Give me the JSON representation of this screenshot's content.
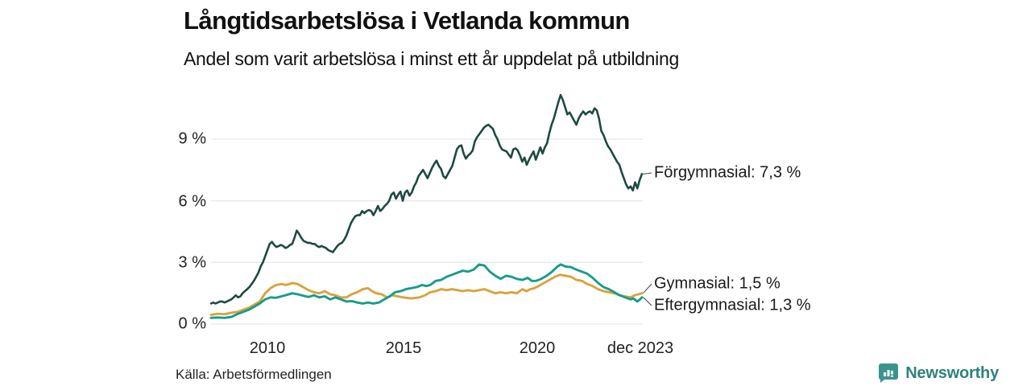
{
  "header": {
    "title": "Långtidsarbetslösa i Vetlanda kommun",
    "subtitle": "Andel som varit arbetslösa i minst ett år uppdelat på utbildning"
  },
  "footer": {
    "source": "Källa: Arbetsförmedlingen",
    "brand_name": "Newsworthy"
  },
  "colors": {
    "forgymnasial": "#1d4a43",
    "gymnasial": "#d8a33e",
    "eftergymnasial": "#179c8b",
    "grid": "#e8e8e8",
    "connector": "#444444",
    "brand_teal": "#3b948c",
    "brand_text": "#2e827c"
  },
  "chart_data": {
    "type": "line",
    "title": "Långtidsarbetslösa i Vetlanda kommun",
    "subtitle": "Andel som varit arbetslösa i minst ett år uppdelat på utbildning",
    "unit": "%",
    "x_range": [
      2008.0,
      2023.95
    ],
    "grid": true,
    "legend_position": "right-annotations",
    "y_axis": {
      "range": [
        0,
        11.5
      ],
      "ticks": [
        {
          "label": "9 %",
          "value": 9
        },
        {
          "label": "6 %",
          "value": 6
        },
        {
          "label": "3 %",
          "value": 3
        },
        {
          "label": "0 %",
          "value": 0
        }
      ]
    },
    "x_axis": {
      "ticks": [
        {
          "label": "2010",
          "year": 2010
        },
        {
          "label": "2015",
          "year": 2015
        },
        {
          "label": "2020",
          "year": 2020
        },
        {
          "label": "dec 2023",
          "year": 2023.92
        }
      ]
    },
    "series": [
      {
        "name": "Förgymnasial",
        "label": "Förgymnasial: 7,3 %",
        "end_value": "7,3 %",
        "color": "#1d4a43",
        "x_start": 2008.0,
        "x_step": 0.08333,
        "values": [
          1.0,
          1.05,
          1.0,
          1.05,
          1.1,
          1.1,
          1.05,
          1.1,
          1.15,
          1.2,
          1.3,
          1.4,
          1.3,
          1.35,
          1.5,
          1.6,
          1.7,
          1.8,
          1.95,
          2.1,
          2.3,
          2.5,
          2.8,
          3.0,
          3.3,
          3.6,
          3.9,
          4.0,
          3.85,
          3.75,
          3.8,
          3.85,
          3.8,
          3.7,
          3.75,
          3.85,
          3.9,
          4.2,
          4.55,
          4.4,
          4.2,
          4.05,
          4.0,
          3.95,
          3.95,
          3.9,
          3.9,
          3.8,
          3.75,
          3.8,
          3.75,
          3.7,
          3.6,
          3.55,
          3.5,
          3.65,
          3.8,
          3.9,
          3.95,
          4.1,
          4.3,
          4.6,
          4.9,
          5.1,
          5.25,
          5.3,
          5.3,
          5.5,
          5.4,
          5.5,
          5.55,
          5.5,
          5.3,
          5.5,
          5.75,
          5.5,
          5.6,
          5.75,
          5.85,
          6.0,
          6.3,
          6.4,
          6.1,
          6.3,
          6.45,
          6.0,
          6.4,
          6.5,
          6.25,
          6.4,
          6.7,
          6.9,
          7.2,
          7.35,
          7.5,
          7.3,
          7.1,
          7.35,
          7.6,
          7.8,
          7.95,
          7.7,
          7.55,
          7.2,
          7.1,
          7.3,
          7.5,
          7.7,
          8.1,
          8.5,
          8.65,
          8.7,
          8.3,
          8.05,
          8.2,
          8.3,
          8.45,
          8.9,
          9.1,
          9.25,
          9.4,
          9.55,
          9.65,
          9.7,
          9.6,
          9.5,
          9.2,
          9.0,
          8.7,
          8.5,
          8.45,
          8.4,
          8.25,
          8.1,
          8.5,
          8.55,
          8.45,
          8.2,
          7.9,
          8.1,
          7.75,
          8.0,
          8.2,
          8.4,
          8.0,
          8.3,
          8.6,
          8.3,
          8.6,
          8.8,
          9.3,
          9.7,
          10.0,
          10.4,
          10.8,
          11.15,
          10.9,
          10.55,
          10.2,
          10.3,
          10.1,
          9.9,
          9.7,
          10.0,
          10.2,
          10.35,
          10.2,
          10.3,
          10.35,
          10.25,
          10.5,
          10.4,
          10.0,
          9.4,
          9.2,
          8.9,
          8.65,
          8.5,
          8.3,
          8.1,
          7.9,
          7.75,
          7.4,
          7.1,
          6.8,
          6.6,
          6.7,
          6.5,
          6.9,
          6.6,
          7.0,
          7.3
        ]
      },
      {
        "name": "Gymnasial",
        "label": "Gymnasial: 1,5 %",
        "end_value": "1,5 %",
        "color": "#d8a33e",
        "points": [
          [
            2008.0,
            0.45
          ],
          [
            2008.25,
            0.5
          ],
          [
            2008.5,
            0.48
          ],
          [
            2008.75,
            0.55
          ],
          [
            2009.0,
            0.6
          ],
          [
            2009.2,
            0.7
          ],
          [
            2009.4,
            0.8
          ],
          [
            2009.6,
            0.95
          ],
          [
            2009.8,
            1.1
          ],
          [
            2010.0,
            1.5
          ],
          [
            2010.2,
            1.75
          ],
          [
            2010.4,
            1.9
          ],
          [
            2010.6,
            1.95
          ],
          [
            2010.75,
            1.9
          ],
          [
            2010.9,
            1.95
          ],
          [
            2011.0,
            2.0
          ],
          [
            2011.2,
            1.95
          ],
          [
            2011.4,
            1.8
          ],
          [
            2011.6,
            1.65
          ],
          [
            2011.8,
            1.55
          ],
          [
            2012.0,
            1.5
          ],
          [
            2012.2,
            1.6
          ],
          [
            2012.4,
            1.45
          ],
          [
            2012.6,
            1.4
          ],
          [
            2012.8,
            1.3
          ],
          [
            2013.0,
            1.3
          ],
          [
            2013.2,
            1.45
          ],
          [
            2013.4,
            1.55
          ],
          [
            2013.6,
            1.7
          ],
          [
            2013.8,
            1.75
          ],
          [
            2013.95,
            1.6
          ],
          [
            2014.1,
            1.5
          ],
          [
            2014.3,
            1.45
          ],
          [
            2014.5,
            1.3
          ],
          [
            2014.7,
            1.4
          ],
          [
            2014.9,
            1.35
          ],
          [
            2015.1,
            1.3
          ],
          [
            2015.4,
            1.25
          ],
          [
            2015.7,
            1.3
          ],
          [
            2015.9,
            1.4
          ],
          [
            2016.1,
            1.55
          ],
          [
            2016.3,
            1.6
          ],
          [
            2016.5,
            1.7
          ],
          [
            2016.7,
            1.65
          ],
          [
            2016.9,
            1.7
          ],
          [
            2017.1,
            1.65
          ],
          [
            2017.3,
            1.6
          ],
          [
            2017.5,
            1.65
          ],
          [
            2017.7,
            1.6
          ],
          [
            2017.9,
            1.65
          ],
          [
            2018.1,
            1.7
          ],
          [
            2018.3,
            1.6
          ],
          [
            2018.5,
            1.5
          ],
          [
            2018.7,
            1.55
          ],
          [
            2018.9,
            1.5
          ],
          [
            2019.1,
            1.55
          ],
          [
            2019.3,
            1.5
          ],
          [
            2019.5,
            1.7
          ],
          [
            2019.65,
            1.6
          ],
          [
            2019.8,
            1.7
          ],
          [
            2019.95,
            1.75
          ],
          [
            2020.1,
            1.85
          ],
          [
            2020.3,
            2.0
          ],
          [
            2020.5,
            2.15
          ],
          [
            2020.7,
            2.3
          ],
          [
            2020.9,
            2.4
          ],
          [
            2021.1,
            2.35
          ],
          [
            2021.3,
            2.3
          ],
          [
            2021.5,
            2.15
          ],
          [
            2021.7,
            2.1
          ],
          [
            2021.9,
            1.95
          ],
          [
            2022.1,
            1.85
          ],
          [
            2022.3,
            1.7
          ],
          [
            2022.5,
            1.6
          ],
          [
            2022.7,
            1.55
          ],
          [
            2022.9,
            1.5
          ],
          [
            2023.1,
            1.4
          ],
          [
            2023.3,
            1.35
          ],
          [
            2023.5,
            1.3
          ],
          [
            2023.65,
            1.4
          ],
          [
            2023.8,
            1.45
          ],
          [
            2023.92,
            1.5
          ]
        ]
      },
      {
        "name": "Eftergymnasial",
        "label": "Eftergymnasial: 1,3 %",
        "end_value": "1,3 %",
        "color": "#179c8b",
        "points": [
          [
            2008.0,
            0.3
          ],
          [
            2008.25,
            0.32
          ],
          [
            2008.5,
            0.3
          ],
          [
            2008.75,
            0.35
          ],
          [
            2009.0,
            0.5
          ],
          [
            2009.2,
            0.6
          ],
          [
            2009.4,
            0.7
          ],
          [
            2009.6,
            0.85
          ],
          [
            2009.8,
            1.0
          ],
          [
            2010.0,
            1.2
          ],
          [
            2010.2,
            1.3
          ],
          [
            2010.4,
            1.28
          ],
          [
            2010.6,
            1.35
          ],
          [
            2010.8,
            1.42
          ],
          [
            2011.0,
            1.5
          ],
          [
            2011.2,
            1.45
          ],
          [
            2011.4,
            1.38
          ],
          [
            2011.6,
            1.32
          ],
          [
            2011.8,
            1.4
          ],
          [
            2012.0,
            1.3
          ],
          [
            2012.2,
            1.35
          ],
          [
            2012.4,
            1.2
          ],
          [
            2012.6,
            1.3
          ],
          [
            2012.8,
            1.2
          ],
          [
            2013.0,
            1.1
          ],
          [
            2013.2,
            1.12
          ],
          [
            2013.4,
            1.05
          ],
          [
            2013.6,
            1.0
          ],
          [
            2013.8,
            1.05
          ],
          [
            2014.0,
            1.0
          ],
          [
            2014.2,
            1.05
          ],
          [
            2014.4,
            1.2
          ],
          [
            2014.6,
            1.35
          ],
          [
            2014.8,
            1.55
          ],
          [
            2015.0,
            1.6
          ],
          [
            2015.2,
            1.7
          ],
          [
            2015.4,
            1.75
          ],
          [
            2015.6,
            1.8
          ],
          [
            2015.8,
            1.9
          ],
          [
            2015.95,
            1.85
          ],
          [
            2016.1,
            1.9
          ],
          [
            2016.3,
            2.1
          ],
          [
            2016.5,
            2.15
          ],
          [
            2016.7,
            2.3
          ],
          [
            2016.9,
            2.4
          ],
          [
            2017.1,
            2.5
          ],
          [
            2017.3,
            2.6
          ],
          [
            2017.5,
            2.55
          ],
          [
            2017.7,
            2.65
          ],
          [
            2017.9,
            2.9
          ],
          [
            2018.1,
            2.85
          ],
          [
            2018.3,
            2.55
          ],
          [
            2018.5,
            2.35
          ],
          [
            2018.7,
            2.2
          ],
          [
            2018.9,
            2.35
          ],
          [
            2019.1,
            2.3
          ],
          [
            2019.3,
            2.2
          ],
          [
            2019.5,
            2.15
          ],
          [
            2019.7,
            2.25
          ],
          [
            2019.85,
            2.1
          ],
          [
            2020.0,
            2.1
          ],
          [
            2020.2,
            2.2
          ],
          [
            2020.4,
            2.35
          ],
          [
            2020.6,
            2.55
          ],
          [
            2020.8,
            2.8
          ],
          [
            2020.92,
            2.9
          ],
          [
            2021.1,
            2.8
          ],
          [
            2021.3,
            2.77
          ],
          [
            2021.5,
            2.65
          ],
          [
            2021.7,
            2.55
          ],
          [
            2021.9,
            2.45
          ],
          [
            2022.1,
            2.25
          ],
          [
            2022.3,
            2.0
          ],
          [
            2022.5,
            1.8
          ],
          [
            2022.7,
            1.7
          ],
          [
            2022.9,
            1.55
          ],
          [
            2023.1,
            1.4
          ],
          [
            2023.3,
            1.3
          ],
          [
            2023.5,
            1.2
          ],
          [
            2023.6,
            1.25
          ],
          [
            2023.75,
            1.1
          ],
          [
            2023.85,
            1.2
          ],
          [
            2023.92,
            1.3
          ]
        ]
      }
    ]
  }
}
